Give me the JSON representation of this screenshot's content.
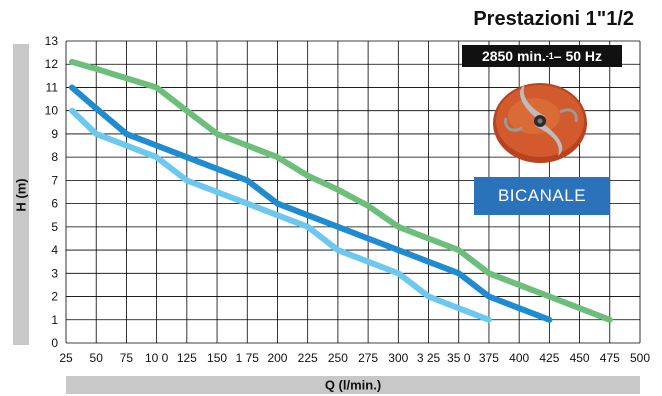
{
  "title": "Prestazioni 1\"1/2",
  "speed_badge": {
    "rpm": "2850 min.",
    "exponent": "-1",
    "freq": "– 50 Hz"
  },
  "impeller_badge": "BICANALE",
  "colors": {
    "green": "#6cbf7a",
    "dark_blue": "#1f8bd0",
    "light_blue": "#6cc8ef",
    "badge_blue": "#2a73ba"
  },
  "chart_data": {
    "type": "line",
    "xlabel": "Q (l/min.)",
    "ylabel": "H (m)",
    "xlim": [
      25,
      500
    ],
    "ylim": [
      0,
      13
    ],
    "x_ticks": [
      25,
      50,
      75,
      100,
      125,
      150,
      175,
      200,
      225,
      250,
      275,
      300,
      325,
      350,
      375,
      400,
      425,
      450,
      475,
      500
    ],
    "x_tick_labels": [
      "25",
      "50",
      "75",
      "10 0",
      "125",
      "150",
      "1 75",
      "200",
      "225",
      "250",
      "275",
      "300",
      "3 25",
      "35 0",
      "375",
      "400",
      "425",
      "450",
      "475",
      "500"
    ],
    "y_ticks": [
      0,
      1,
      2,
      3,
      4,
      5,
      6,
      7,
      8,
      9,
      10,
      11,
      12,
      13
    ],
    "grid": true,
    "series": [
      {
        "color_key": "green",
        "points": [
          [
            30,
            12.1
          ],
          [
            50,
            11.8
          ],
          [
            75,
            11.4
          ],
          [
            100,
            11.0
          ],
          [
            125,
            10.0
          ],
          [
            150,
            9.0
          ],
          [
            175,
            8.5
          ],
          [
            200,
            8.0
          ],
          [
            225,
            7.2
          ],
          [
            250,
            6.6
          ],
          [
            275,
            5.9
          ],
          [
            300,
            5.0
          ],
          [
            325,
            4.5
          ],
          [
            350,
            4.0
          ],
          [
            375,
            3.0
          ],
          [
            400,
            2.5
          ],
          [
            425,
            2.0
          ],
          [
            450,
            1.5
          ],
          [
            475,
            1.0
          ]
        ]
      },
      {
        "color_key": "dark_blue",
        "points": [
          [
            30,
            11.0
          ],
          [
            50,
            10.1
          ],
          [
            75,
            9.0
          ],
          [
            100,
            8.5
          ],
          [
            125,
            8.0
          ],
          [
            150,
            7.5
          ],
          [
            175,
            7.0
          ],
          [
            200,
            6.0
          ],
          [
            225,
            5.5
          ],
          [
            250,
            5.0
          ],
          [
            275,
            4.5
          ],
          [
            300,
            4.0
          ],
          [
            325,
            3.5
          ],
          [
            350,
            3.0
          ],
          [
            375,
            2.0
          ],
          [
            400,
            1.5
          ],
          [
            425,
            1.0
          ]
        ]
      },
      {
        "color_key": "light_blue",
        "points": [
          [
            30,
            10.0
          ],
          [
            50,
            9.0
          ],
          [
            75,
            8.5
          ],
          [
            100,
            8.0
          ],
          [
            125,
            7.0
          ],
          [
            150,
            6.5
          ],
          [
            175,
            6.0
          ],
          [
            200,
            5.5
          ],
          [
            225,
            5.0
          ],
          [
            250,
            4.0
          ],
          [
            275,
            3.5
          ],
          [
            300,
            3.0
          ],
          [
            325,
            2.0
          ],
          [
            350,
            1.5
          ],
          [
            375,
            1.0
          ]
        ]
      }
    ]
  }
}
